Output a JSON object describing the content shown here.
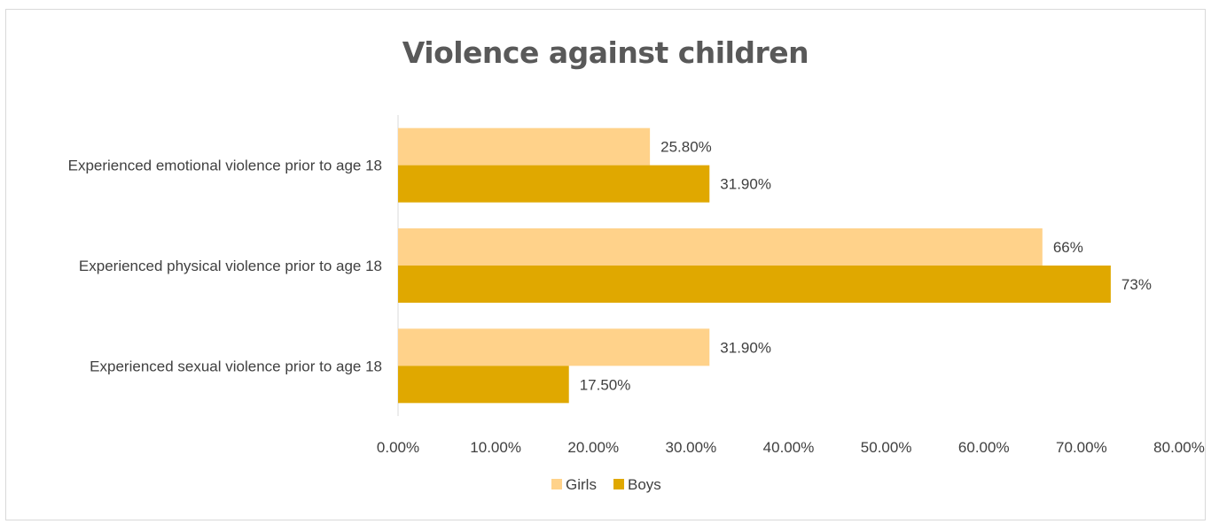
{
  "chart_data": {
    "type": "bar",
    "orientation": "horizontal",
    "title": "Violence against children",
    "categories": [
      "Experienced emotional violence prior to age 18",
      "Experienced physical violence prior to age 18",
      "Experienced sexual violence prior to age  18"
    ],
    "series": [
      {
        "name": "Girls",
        "color": "#ffd28a",
        "values": [
          25.8,
          66,
          31.9
        ],
        "labels": [
          "25.80%",
          "66%",
          "31.90%"
        ]
      },
      {
        "name": "Boys",
        "color": "#e0a800",
        "values": [
          31.9,
          73,
          17.5
        ],
        "labels": [
          "31.90%",
          "73%",
          "17.50%"
        ]
      }
    ],
    "xlim": [
      0,
      80
    ],
    "x_ticks": [
      "0.00%",
      "10.00%",
      "20.00%",
      "30.00%",
      "40.00%",
      "50.00%",
      "60.00%",
      "70.00%",
      "80.00%"
    ],
    "grid": false,
    "legend": "bottom"
  }
}
